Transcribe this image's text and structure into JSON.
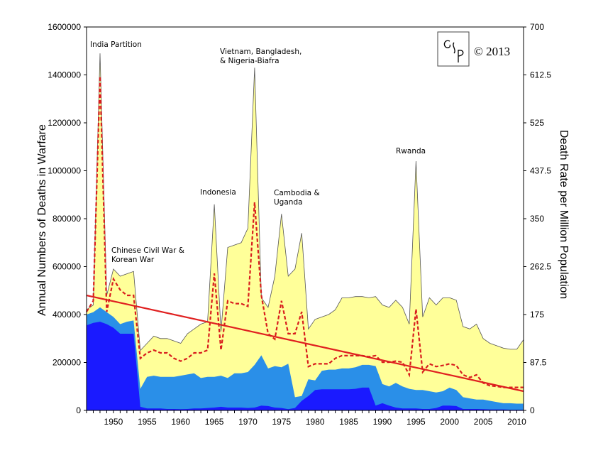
{
  "chart_data": {
    "type": "area",
    "title": "",
    "ylabel": "Annual Numbers of Deaths in Warfare",
    "y2label": "Death Rate per Million Population",
    "xlim": [
      1946,
      2011
    ],
    "ylim": [
      0,
      1600000
    ],
    "y2lim": [
      0,
      700
    ],
    "x_ticks": [
      1950,
      1955,
      1960,
      1965,
      1970,
      1975,
      1980,
      1985,
      1990,
      1995,
      2000,
      2005,
      2010
    ],
    "y_ticks": [
      0,
      200000,
      400000,
      600000,
      800000,
      1000000,
      1200000,
      1400000,
      1600000
    ],
    "y_tick_labels": [
      "0",
      "200000",
      "400000",
      "600000",
      "800000",
      "1000000",
      "1200000",
      "1400000",
      "1600000"
    ],
    "y2_ticks": [
      0,
      87.5,
      175,
      262.5,
      350,
      437.5,
      525,
      612.5,
      700
    ],
    "y2_tick_labels": [
      "0",
      "87.5",
      "175",
      "262.5",
      "350",
      "437.5",
      "525",
      "612.5",
      "700"
    ],
    "grid": false,
    "legend": "none",
    "x": [
      1946,
      1947,
      1948,
      1949,
      1950,
      1951,
      1952,
      1953,
      1954,
      1955,
      1956,
      1957,
      1958,
      1959,
      1960,
      1961,
      1962,
      1963,
      1964,
      1965,
      1966,
      1967,
      1968,
      1969,
      1970,
      1971,
      1972,
      1973,
      1974,
      1975,
      1976,
      1977,
      1978,
      1979,
      1980,
      1981,
      1982,
      1983,
      1984,
      1985,
      1986,
      1987,
      1988,
      1989,
      1990,
      1991,
      1992,
      1993,
      1994,
      1995,
      1996,
      1997,
      1998,
      1999,
      2000,
      2001,
      2002,
      2003,
      2004,
      2005,
      2006,
      2007,
      2008,
      2009,
      2010,
      2011
    ],
    "series": [
      {
        "role": "stacked-area-layer-1",
        "color": "#1a1aff",
        "values": [
          355000,
          365000,
          370000,
          360000,
          345000,
          320000,
          320000,
          320000,
          15000,
          8000,
          8000,
          8000,
          6000,
          6000,
          5000,
          6000,
          8000,
          8000,
          10000,
          12000,
          15000,
          12000,
          12000,
          12000,
          10000,
          12000,
          20000,
          18000,
          12000,
          10000,
          5000,
          10000,
          40000,
          60000,
          85000,
          88000,
          88000,
          88000,
          88000,
          88000,
          90000,
          95000,
          95000,
          20000,
          30000,
          20000,
          12000,
          8000,
          8000,
          8000,
          6000,
          6000,
          10000,
          20000,
          20000,
          18000,
          6000,
          6000,
          6000,
          5000,
          4000,
          4000,
          4000,
          3000,
          3000,
          3000
        ]
      },
      {
        "role": "stacked-area-layer-2",
        "color": "#2a8fe8",
        "values": [
          400000,
          410000,
          430000,
          410000,
          390000,
          360000,
          370000,
          375000,
          90000,
          140000,
          145000,
          140000,
          140000,
          140000,
          145000,
          150000,
          155000,
          135000,
          140000,
          140000,
          145000,
          135000,
          155000,
          155000,
          160000,
          190000,
          230000,
          175000,
          185000,
          180000,
          195000,
          55000,
          60000,
          130000,
          125000,
          165000,
          170000,
          170000,
          175000,
          175000,
          180000,
          190000,
          190000,
          185000,
          110000,
          100000,
          115000,
          100000,
          90000,
          85000,
          85000,
          80000,
          75000,
          80000,
          95000,
          85000,
          55000,
          50000,
          45000,
          45000,
          40000,
          35000,
          30000,
          30000,
          28000,
          28000
        ]
      },
      {
        "role": "stacked-area-layer-3-total",
        "color": "#ffff99",
        "values": [
          420000,
          440000,
          1490000,
          480000,
          590000,
          560000,
          570000,
          580000,
          250000,
          280000,
          310000,
          300000,
          300000,
          290000,
          280000,
          320000,
          340000,
          360000,
          370000,
          860000,
          330000,
          680000,
          690000,
          700000,
          760000,
          1430000,
          470000,
          430000,
          560000,
          820000,
          560000,
          590000,
          740000,
          340000,
          380000,
          390000,
          400000,
          420000,
          470000,
          470000,
          475000,
          475000,
          470000,
          475000,
          440000,
          430000,
          460000,
          430000,
          360000,
          1040000,
          390000,
          470000,
          440000,
          470000,
          470000,
          460000,
          350000,
          340000,
          360000,
          300000,
          280000,
          270000,
          260000,
          255000,
          255000,
          295000
        ]
      },
      {
        "role": "death-rate-per-million-right-axis",
        "color": "#d81d1d",
        "style": "dashed",
        "axis": "right",
        "values": [
          180,
          200,
          610,
          180,
          240,
          220,
          210,
          210,
          95,
          105,
          110,
          105,
          105,
          95,
          90,
          95,
          105,
          105,
          110,
          250,
          110,
          200,
          195,
          195,
          190,
          380,
          210,
          140,
          130,
          200,
          140,
          140,
          180,
          80,
          85,
          85,
          85,
          95,
          100,
          100,
          100,
          100,
          98,
          100,
          88,
          88,
          90,
          88,
          65,
          185,
          70,
          85,
          80,
          82,
          85,
          82,
          65,
          60,
          65,
          50,
          45,
          44,
          42,
          42,
          42,
          42
        ]
      },
      {
        "role": "trend-line",
        "color": "#e02020",
        "axis": "left",
        "x": [
          1946,
          2011
        ],
        "values": [
          480000,
          80000
        ]
      }
    ],
    "annotations": [
      {
        "key": "india",
        "x": 1948,
        "lines": [
          "India Partition"
        ]
      },
      {
        "key": "chinese",
        "x": 1951,
        "lines": [
          "Chinese Civil War &",
          "Korean War"
        ]
      },
      {
        "key": "indonesia",
        "x": 1965,
        "lines": [
          "Indonesia"
        ]
      },
      {
        "key": "vietnam",
        "x": 1971,
        "lines": [
          "Vietnam, Bangladesh,",
          "& Nigeria-Biafra"
        ]
      },
      {
        "key": "cambodia",
        "x": 1977,
        "lines": [
          "Cambodia &",
          "Uganda"
        ]
      },
      {
        "key": "rwanda",
        "x": 1994,
        "lines": [
          "Rwanda"
        ]
      }
    ],
    "logo": {
      "text": "CSP",
      "copyright": "© 2013"
    }
  }
}
